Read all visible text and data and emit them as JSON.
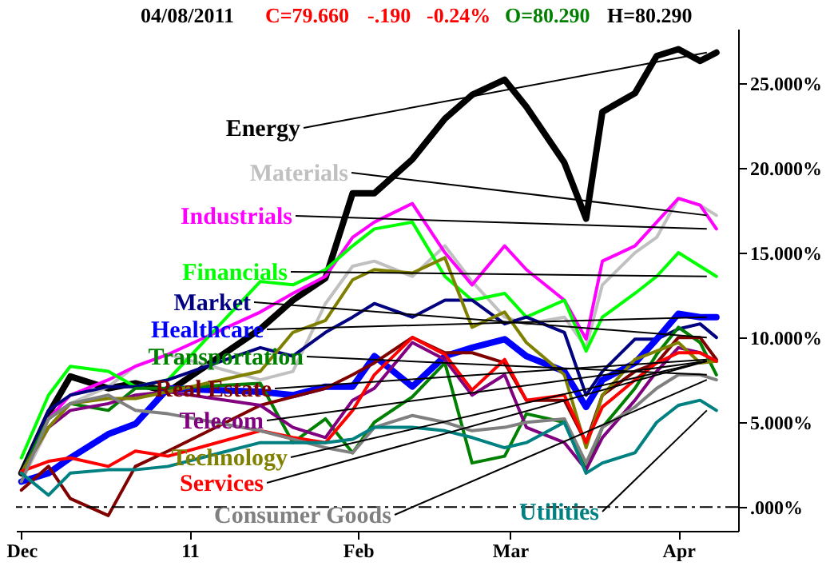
{
  "chart_data": {
    "type": "line",
    "annotations": [
      "04/08/2011",
      "C=79.660",
      "-.190",
      "-0.24%",
      "O=80.290",
      "H=80.290"
    ],
    "x": [
      "2010-12-01",
      "2010-12-06",
      "2010-12-10",
      "2010-12-17",
      "2010-12-22",
      "2010-12-28",
      "2011-01-14",
      "2011-01-20",
      "2011-01-26",
      "2011-01-31",
      "2011-02-04",
      "2011-02-11",
      "2011-02-17",
      "2011-02-22",
      "2011-02-28",
      "2011-03-04",
      "2011-03-11",
      "2011-03-15",
      "2011-03-18",
      "2011-03-24",
      "2011-03-28",
      "2011-04-01",
      "2011-04-05",
      "2011-04-08"
    ],
    "series": [
      {
        "name": "Energy",
        "color": "#000000",
        "values": [
          2,
          5.5,
          7.7,
          7,
          7.3,
          6.8,
          10.5,
          12.2,
          13.5,
          18.5,
          18.5,
          20.5,
          22.9,
          24.3,
          25.2,
          23.6,
          20.3,
          17,
          23.3,
          24.4,
          26.6,
          27,
          26.3,
          26.8
        ]
      },
      {
        "name": "Materials",
        "color": "#c0c0c0",
        "values": [
          1.5,
          4.7,
          6.1,
          7.1,
          8.3,
          9,
          7.5,
          8,
          12,
          14.2,
          14.5,
          13.6,
          15.4,
          13.3,
          11.2,
          10.8,
          11.2,
          9.4,
          13.1,
          15,
          15.9,
          18.2,
          17.8,
          17.2
        ]
      },
      {
        "name": "Industrials",
        "color": "#ff00ff",
        "values": [
          null,
          5.2,
          6.6,
          7.5,
          8.3,
          9,
          11.5,
          12.6,
          13.6,
          15.9,
          16.8,
          17.9,
          15,
          13.1,
          15.4,
          14,
          12.2,
          9.9,
          14.5,
          15.4,
          16.8,
          18.2,
          17.8,
          16.4
        ]
      },
      {
        "name": "Financials",
        "color": "#00ff00",
        "values": [
          2.9,
          6.6,
          8.3,
          8,
          7.1,
          7.5,
          13.3,
          13.1,
          14,
          15.4,
          16.4,
          16.8,
          13.6,
          12.2,
          12.6,
          11.2,
          12.2,
          9.2,
          11.2,
          12.6,
          13.6,
          15,
          14.2,
          13.6
        ]
      },
      {
        "name": "Market",
        "color": "#000080",
        "values": [
          2,
          5.7,
          6.6,
          7.1,
          7.1,
          7.5,
          9.4,
          8.9,
          10.3,
          11.2,
          12,
          11.2,
          12.2,
          12.2,
          10.8,
          11.2,
          10.3,
          6.6,
          8,
          9.9,
          9.9,
          10.5,
          10.8,
          10
        ]
      },
      {
        "name": "Healthcare",
        "color": "#0000ff",
        "values": [
          1.5,
          2,
          2.9,
          4.3,
          4.9,
          7,
          6.8,
          6.6,
          7.1,
          7.1,
          8.9,
          7.1,
          8.9,
          9.4,
          9.9,
          8.9,
          8,
          5.9,
          7.5,
          8.5,
          9.9,
          11.4,
          11.2,
          11.2
        ]
      },
      {
        "name": "Transportation",
        "color": "#008000",
        "values": [
          2,
          5.2,
          6.1,
          5.7,
          7,
          7,
          7.3,
          3.8,
          5.2,
          3.2,
          5,
          6.5,
          8.5,
          2.6,
          3,
          5.5,
          5,
          2.2,
          4.7,
          7,
          9,
          10.6,
          9.7,
          7.8
        ]
      },
      {
        "name": "Real Estate",
        "color": "#800000",
        "values": [
          1,
          2.4,
          0.5,
          -0.5,
          2.4,
          3.3,
          6,
          6.5,
          7,
          7.8,
          8.5,
          10,
          9.1,
          9.1,
          8.5,
          6.3,
          6.3,
          3.8,
          6.6,
          8,
          8.5,
          10,
          10,
          8.7
        ]
      },
      {
        "name": "Telecom",
        "color": "#800080",
        "values": [
          2,
          4.7,
          5.7,
          6.1,
          6.6,
          6.8,
          6,
          4.7,
          4.1,
          6.3,
          7,
          9.7,
          8.7,
          6.6,
          7.8,
          4.7,
          3.8,
          2.2,
          4.1,
          6.3,
          8,
          9.4,
          9.1,
          8.6
        ]
      },
      {
        "name": "Technology",
        "color": "#808000",
        "values": [
          2,
          4.7,
          6.1,
          6.4,
          6.4,
          6.8,
          8,
          10.3,
          11,
          13.4,
          14,
          13.8,
          14.7,
          10.6,
          11.5,
          9.7,
          7.8,
          3.5,
          6.6,
          8.7,
          9.2,
          9.7,
          8.5,
          8.6
        ]
      },
      {
        "name": "Services",
        "color": "#ff0000",
        "values": [
          2.1,
          2.7,
          2.9,
          2.4,
          3.3,
          3,
          4.5,
          4.1,
          3.8,
          5.7,
          7.8,
          10,
          9,
          6.9,
          8.7,
          6.3,
          6.6,
          3.8,
          5.9,
          7.5,
          8.5,
          9.1,
          9.1,
          8.6
        ]
      },
      {
        "name": "Consumer Goods",
        "color": "#808080",
        "values": [
          1.5,
          5.2,
          6.1,
          6.6,
          5.7,
          5.5,
          4.5,
          4,
          3.5,
          3.2,
          4.7,
          5.4,
          5,
          4.5,
          4.7,
          5,
          5.2,
          2.6,
          4.7,
          5.9,
          7,
          7.8,
          7.8,
          7.5
        ]
      },
      {
        "name": "Utilities",
        "color": "#008080",
        "values": [
          2,
          0.7,
          2,
          2.2,
          2.2,
          2.4,
          3.8,
          3.8,
          3.8,
          4,
          4.7,
          4.7,
          4.5,
          4.1,
          3.5,
          3.8,
          5,
          2,
          2.6,
          3.2,
          5,
          6,
          6.3,
          5.7
        ]
      }
    ],
    "xlim": [
      "2010-11-30",
      "2011-04-12"
    ],
    "xticks": [
      {
        "value": "2010-12-01",
        "label": "Dec"
      },
      {
        "value": "2011-01-01",
        "label": "11"
      },
      {
        "value": "2011-02-01",
        "label": "Feb"
      },
      {
        "value": "2011-03-01",
        "label": "Mar"
      },
      {
        "value": "2011-04-01",
        "label": "Apr"
      }
    ],
    "ylim": [
      -1.4,
      28.2
    ],
    "yticks": [
      {
        "value": 0,
        "label": ".000%"
      },
      {
        "value": 5,
        "label": "5.000%"
      },
      {
        "value": 10,
        "label": "10.000%"
      },
      {
        "value": 15,
        "label": "15.000%"
      },
      {
        "value": 20,
        "label": "20.000%"
      },
      {
        "value": 25,
        "label": "25.000%"
      }
    ],
    "ref_lines": [
      {
        "axis": "y",
        "value": 0,
        "line_style": "dashed"
      }
    ],
    "grid": false
  }
}
